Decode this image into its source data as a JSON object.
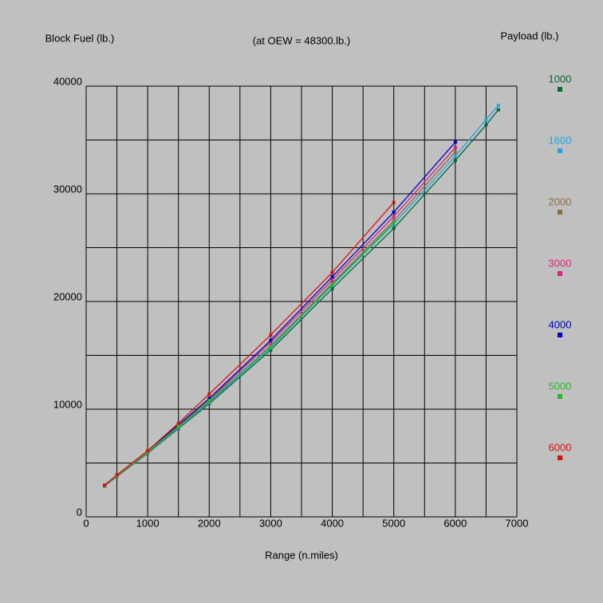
{
  "chart_data": {
    "type": "line",
    "title": "(at OEW = 48300.lb.)",
    "y_label": "Block Fuel (lb.)",
    "x_label": "Range (n.miles)",
    "legend_title": "Payload (lb.)",
    "x": [
      300,
      500,
      1000,
      1500,
      2000,
      3000,
      4000,
      5000,
      6000,
      6500,
      6700
    ],
    "series": [
      {
        "name": "1000",
        "color": "#006b2e",
        "values": [
          2850,
          3750,
          5900,
          8200,
          10500,
          15500,
          21200,
          26800,
          33100,
          36400,
          37800
        ]
      },
      {
        "name": "1600",
        "color": "#1aa6e8",
        "values": [
          2870,
          3780,
          5950,
          8280,
          10600,
          15700,
          21500,
          27200,
          33500,
          36900,
          38200
        ]
      },
      {
        "name": "2000",
        "color": "#8b6d45",
        "values": [
          2880,
          3800,
          6000,
          8350,
          10700,
          15900,
          21700,
          27500,
          33900,
          null,
          null
        ]
      },
      {
        "name": "3000",
        "color": "#e0207a",
        "values": [
          2900,
          3830,
          6050,
          8450,
          10850,
          16200,
          22000,
          27900,
          34300,
          null,
          null
        ]
      },
      {
        "name": "4000",
        "color": "#0000cc",
        "values": [
          2920,
          3870,
          6100,
          8550,
          11000,
          16400,
          22300,
          28300,
          34800,
          null,
          null
        ]
      },
      {
        "name": "5000",
        "color": "#22bb22",
        "values": [
          2900,
          3850,
          6050,
          8400,
          10800,
          15800,
          21600,
          27300,
          null,
          null,
          null
        ]
      },
      {
        "name": "6000",
        "color": "#dd1111",
        "values": [
          2950,
          3900,
          6150,
          8700,
          11400,
          16900,
          22700,
          29200,
          null,
          null,
          null
        ]
      }
    ],
    "xlim": [
      0,
      7000
    ],
    "ylim": [
      0,
      40000
    ],
    "xticks": [
      0,
      1000,
      2000,
      3000,
      4000,
      5000,
      6000,
      7000
    ],
    "yticks": [
      0,
      10000,
      20000,
      30000,
      40000
    ],
    "xgrid": [
      0,
      500,
      1000,
      1500,
      2000,
      2500,
      3000,
      3500,
      4000,
      4500,
      5000,
      5500,
      6000,
      6500,
      7000
    ],
    "ygrid": [
      0,
      5000,
      10000,
      15000,
      20000,
      25000,
      30000,
      35000,
      40000
    ],
    "grid": true
  }
}
